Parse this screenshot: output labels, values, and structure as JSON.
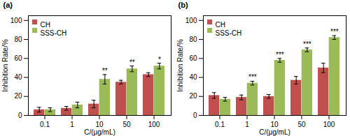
{
  "chart_data": [
    {
      "type": "bar",
      "title": "(a)",
      "categories": [
        "0.1",
        "1",
        "10",
        "50",
        "100"
      ],
      "series": [
        {
          "name": "CH",
          "color": "#c0504d",
          "values": [
            6,
            7.5,
            12,
            35,
            43
          ],
          "errors": [
            2.5,
            2,
            4,
            2,
            2
          ]
        },
        {
          "name": "SSS-CH",
          "color": "#9bbb59",
          "values": [
            6,
            11,
            38,
            49,
            52
          ],
          "errors": [
            2,
            3,
            5,
            3,
            3
          ]
        }
      ],
      "annotations": [
        {
          "category": "10",
          "series": "SSS-CH",
          "text": "**"
        },
        {
          "category": "50",
          "series": "SSS-CH",
          "text": "**"
        },
        {
          "category": "100",
          "series": "SSS-CH",
          "text": "*"
        }
      ],
      "xlabel": "C/(μg/mL)",
      "ylabel": "Inhibition Rate/%",
      "ylim": [
        0,
        105
      ],
      "yticks": [
        0,
        20,
        40,
        60,
        80,
        100
      ],
      "legend": "upper left",
      "grid": false
    },
    {
      "type": "bar",
      "title": "(b)",
      "categories": [
        "0.1",
        "1",
        "10",
        "50",
        "100"
      ],
      "series": [
        {
          "name": "CH",
          "color": "#c0504d",
          "values": [
            21,
            19,
            20,
            37,
            50
          ],
          "errors": [
            3,
            2.5,
            2,
            4,
            5
          ]
        },
        {
          "name": "SSS-CH",
          "color": "#9bbb59",
          "values": [
            17,
            34,
            58,
            69,
            82
          ],
          "errors": [
            2,
            2,
            2,
            2,
            2
          ]
        }
      ],
      "annotations": [
        {
          "category": "1",
          "series": "SSS-CH",
          "text": "***"
        },
        {
          "category": "10",
          "series": "SSS-CH",
          "text": "***"
        },
        {
          "category": "50",
          "series": "SSS-CH",
          "text": "***"
        },
        {
          "category": "100",
          "series": "SSS-CH",
          "text": "***"
        }
      ],
      "xlabel": "C/(μg/mL)",
      "ylabel": "Inhibition Rate/%",
      "ylim": [
        0,
        105
      ],
      "yticks": [
        0,
        20,
        40,
        60,
        80,
        100
      ],
      "legend": "upper left",
      "grid": false
    }
  ]
}
